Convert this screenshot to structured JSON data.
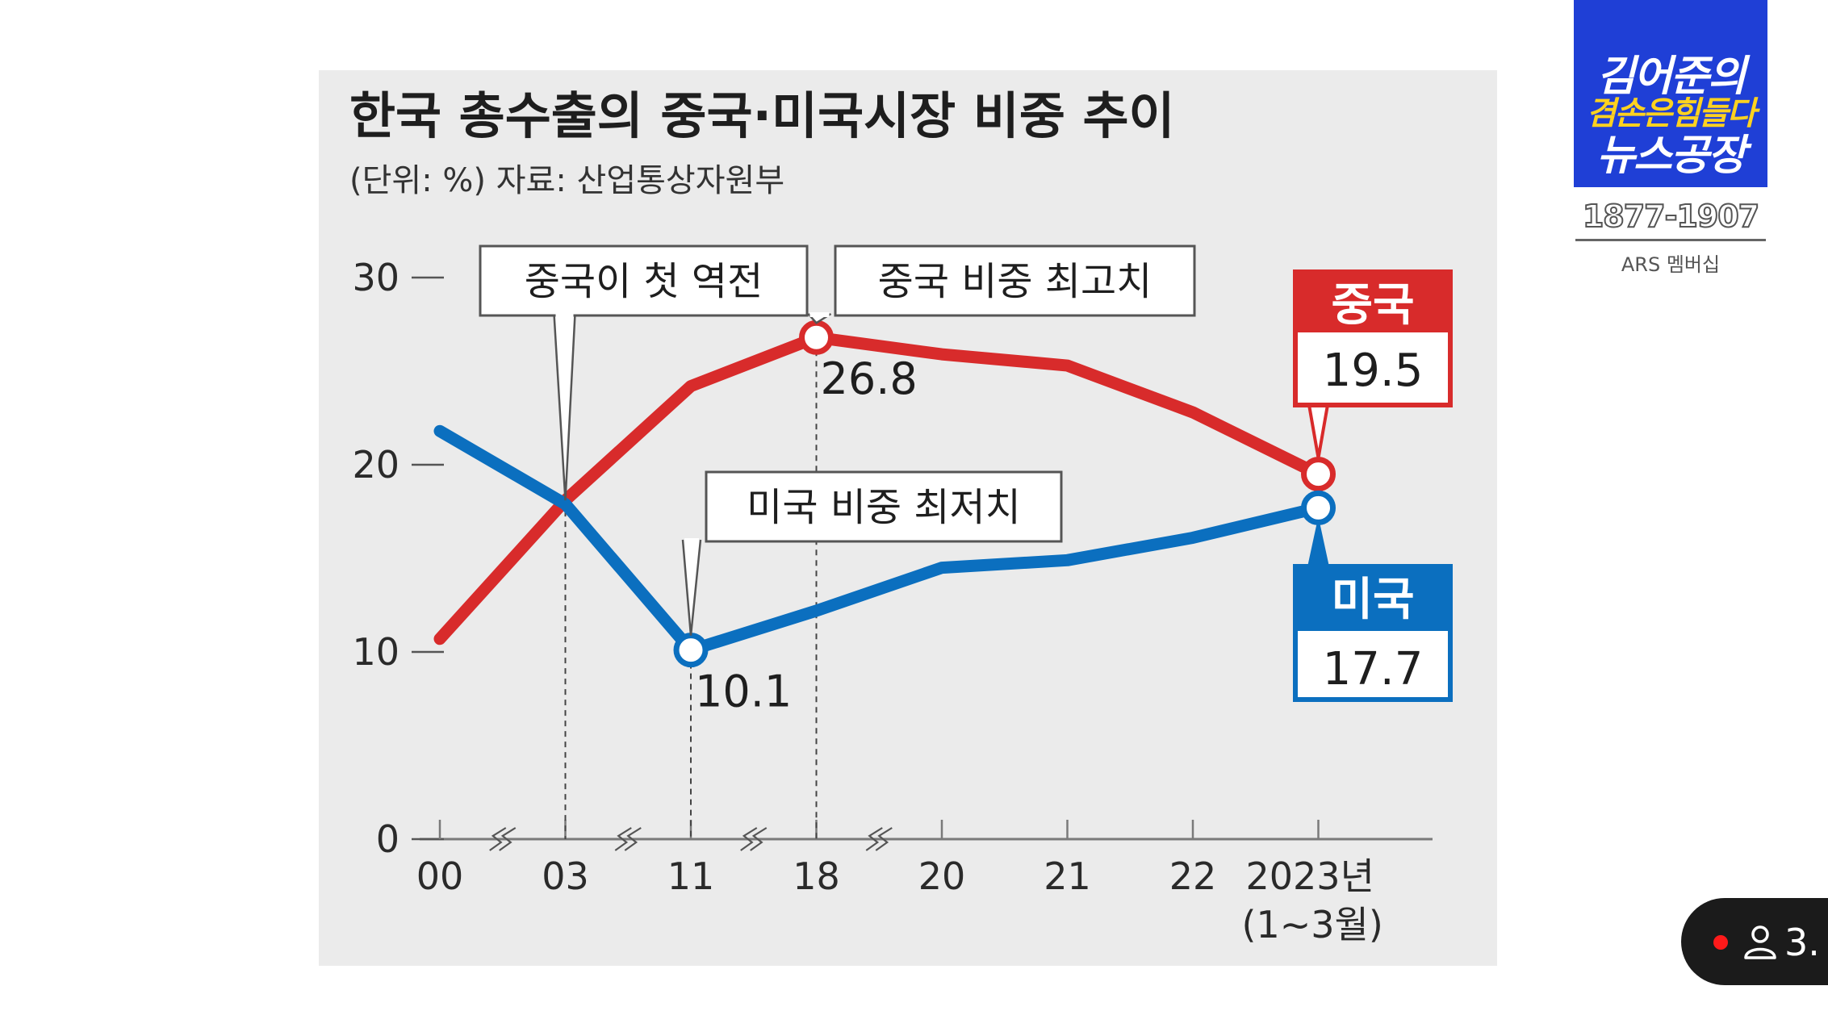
{
  "chart_data": {
    "type": "line",
    "title": "한국 총수출의 중국·미국시장 비중 추이",
    "subtitle": "(단위: %)  자료: 산업통상자원부",
    "categories": [
      "00",
      "03",
      "11",
      "18",
      "20",
      "21",
      "22",
      "2023년"
    ],
    "category_note": "(1~3월)",
    "axis_break_between": [
      [
        "00",
        "03"
      ],
      [
        "03",
        "11"
      ],
      [
        "11",
        "18"
      ],
      [
        "18",
        "20"
      ]
    ],
    "ylim": [
      0,
      30
    ],
    "y_ticks": [
      "0",
      "10",
      "20",
      "30"
    ],
    "grid": false,
    "series": [
      {
        "name": "중국",
        "color": "#d82b2b",
        "values": [
          10.7,
          18.1,
          24.2,
          26.8,
          25.9,
          25.3,
          22.8,
          19.5
        ]
      },
      {
        "name": "미국",
        "color": "#0b6fbf",
        "values": [
          21.8,
          17.9,
          10.1,
          12.2,
          14.5,
          14.9,
          16.1,
          17.7
        ]
      }
    ],
    "point_labels": [
      {
        "series": 0,
        "index": 3,
        "text": "26.8"
      },
      {
        "series": 1,
        "index": 2,
        "text": "10.1"
      }
    ],
    "callouts": [
      {
        "text": "중국이 첫 역전",
        "index": 1
      },
      {
        "text": "중국 비중 최고치",
        "index": 3,
        "series": 0
      },
      {
        "text": "미국 비중 최저치",
        "index": 2,
        "series": 1
      }
    ],
    "end_badges": [
      {
        "series": 0,
        "name": "중국",
        "value": "19.5"
      },
      {
        "series": 1,
        "name": "미국",
        "value": "17.7"
      }
    ]
  },
  "overlay": {
    "logo": {
      "line1": "김어준의",
      "line2": "겸손은힘들다",
      "line3": "뉴스공장"
    },
    "phone": "1877-1907",
    "membership": "ARS 멤버십",
    "viewer_count": "3.",
    "live_color": "#ff1a1a"
  }
}
